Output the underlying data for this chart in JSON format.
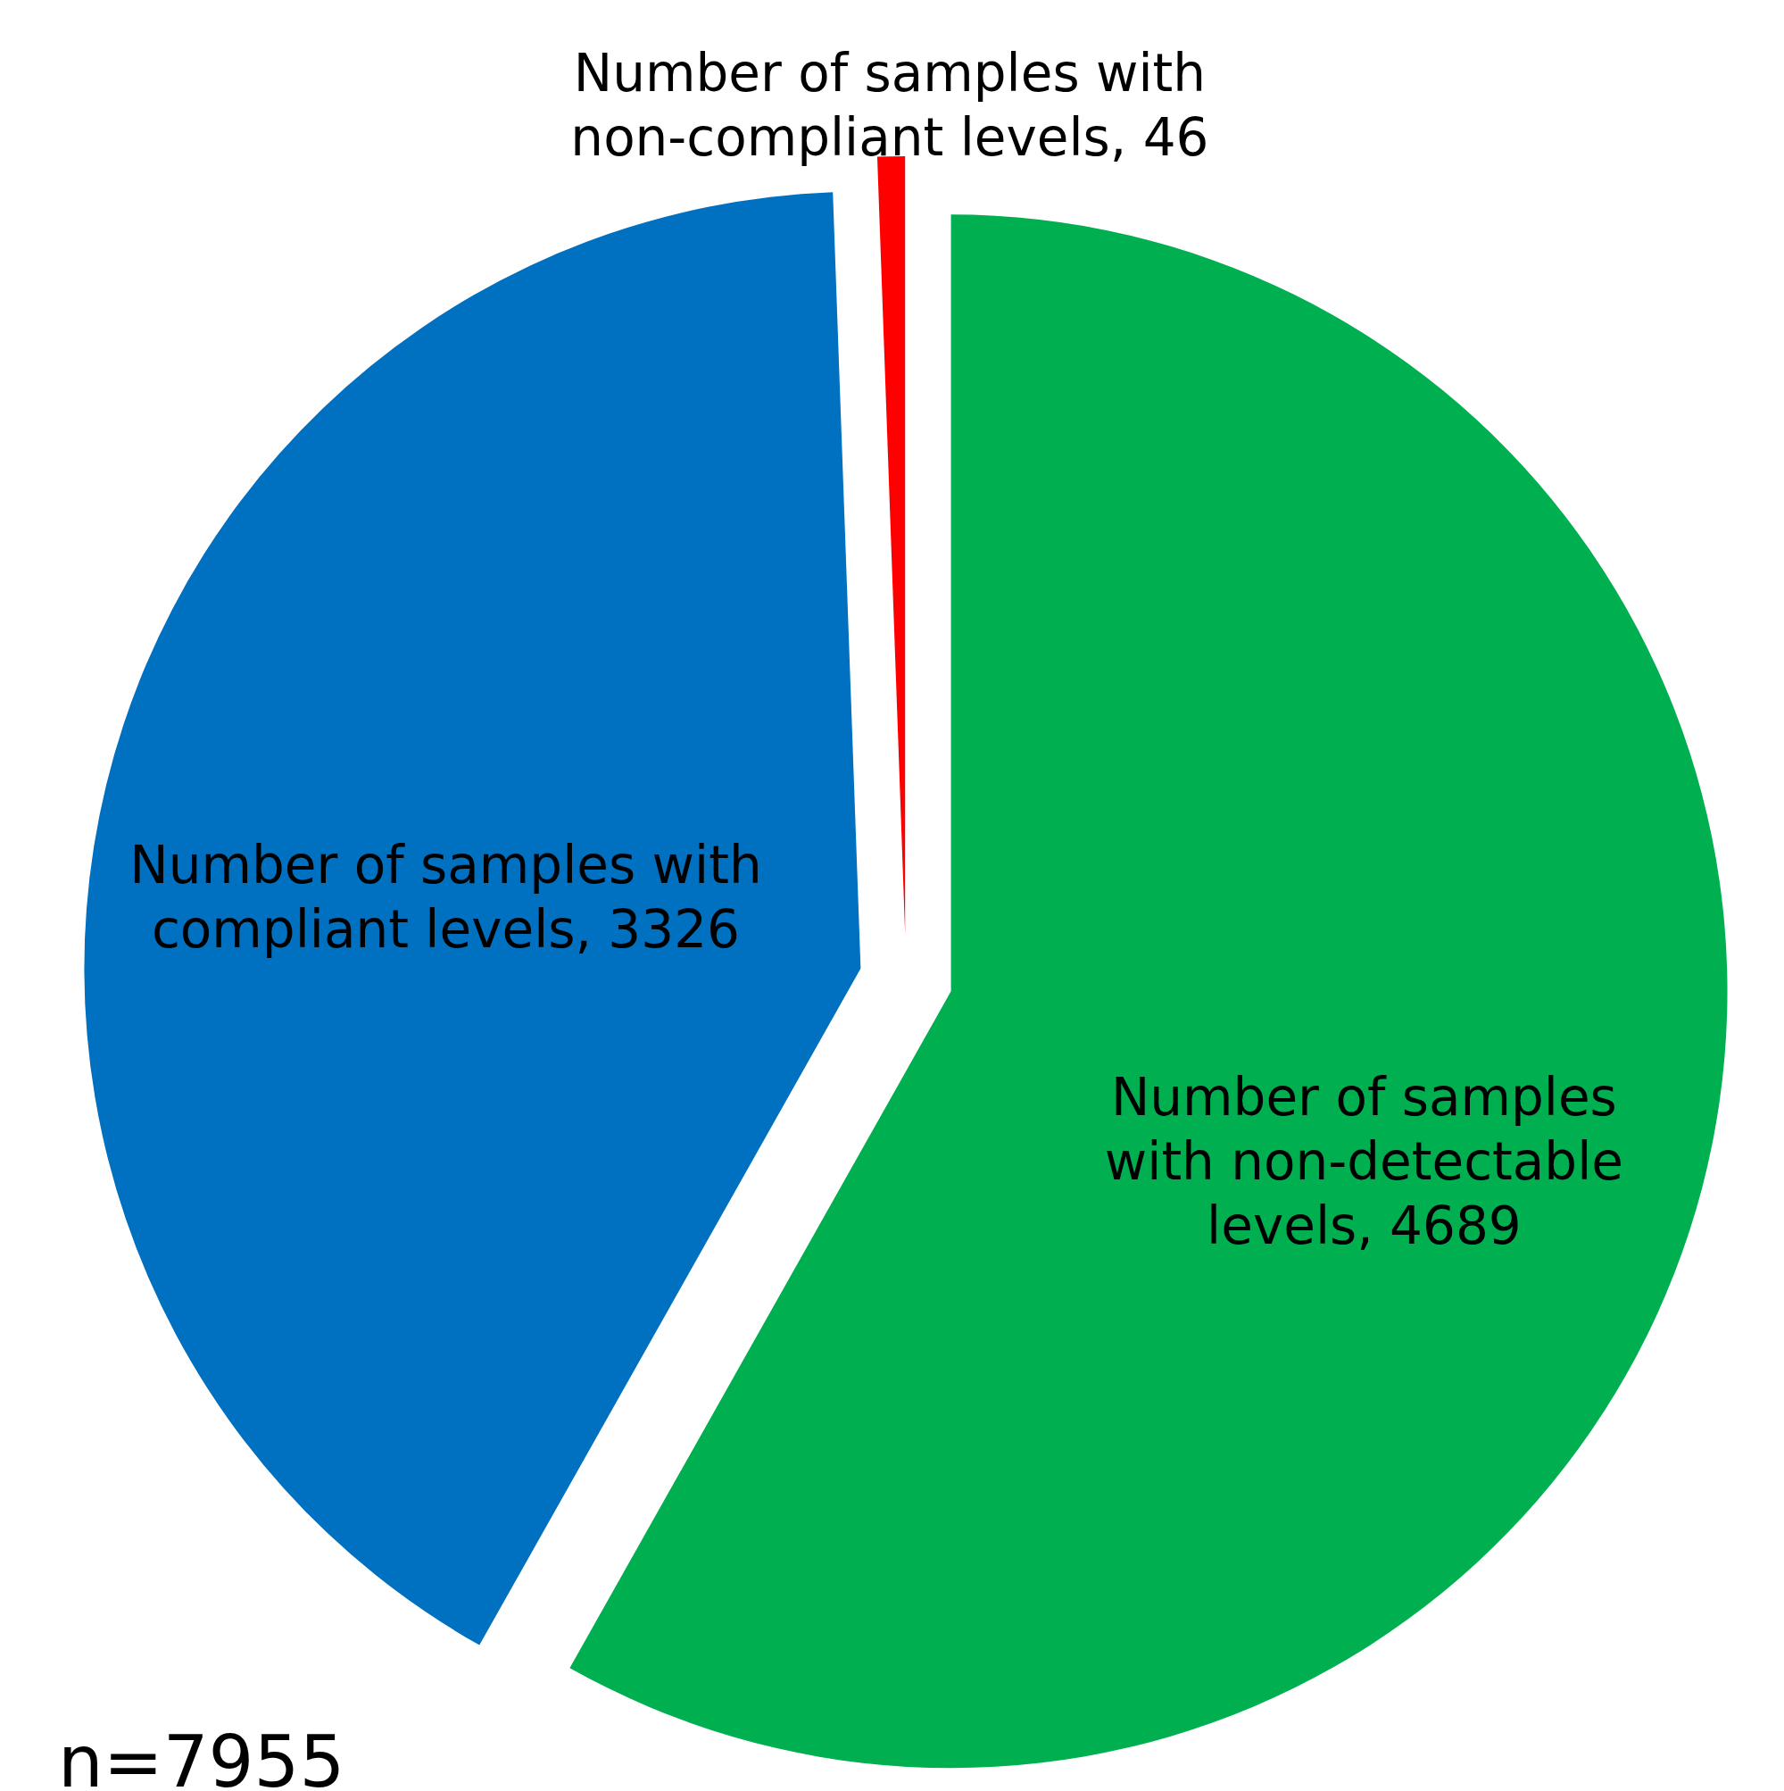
{
  "chart_data": {
    "type": "pie",
    "categories": [
      "Number of samples with non-detectable levels, 4689",
      "Number of samples with compliant levels, 3326",
      "Number of samples with non-compliant levels, 46"
    ],
    "values": [
      4689,
      3326,
      46
    ],
    "colors": [
      "#00b050",
      "#0070c0",
      "#ff0000"
    ],
    "annotations": [
      "n=7955"
    ]
  }
}
